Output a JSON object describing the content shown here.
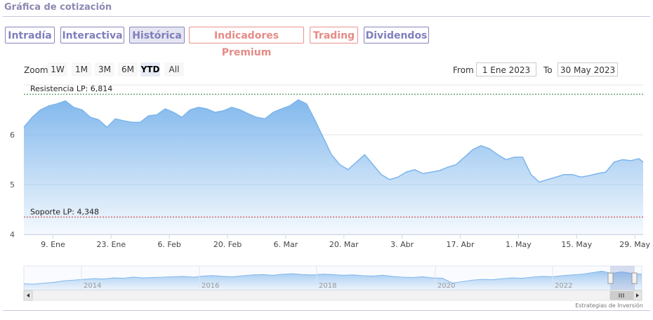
{
  "header": {
    "title": "Gráfica de cotización"
  },
  "tabs": [
    {
      "label": "Intradía",
      "style": "blue",
      "active": false
    },
    {
      "label": "Interactiva",
      "style": "blue",
      "active": false
    },
    {
      "label": "Histórica",
      "style": "blue",
      "active": true
    },
    {
      "label": "Indicadores Premium",
      "style": "red",
      "active": false
    },
    {
      "label": "Trading",
      "style": "red",
      "active": false
    },
    {
      "label": "Dividendos",
      "style": "blue",
      "active": false
    }
  ],
  "zoom": {
    "label": "Zoom",
    "buttons": [
      "1W",
      "1M",
      "3M",
      "6M",
      "YTD",
      "All"
    ],
    "selected": "YTD"
  },
  "range": {
    "from_label": "From",
    "from_value": "1 Ene 2023",
    "to_label": "To",
    "to_value": "30 May 2023"
  },
  "credit": "Estrategias de Inversión",
  "colors": {
    "area_line": "#7cb5ec",
    "resistance": "#2e7d32",
    "support": "#c62828",
    "accent": "#8785be"
  },
  "chart_data": {
    "type": "area",
    "ylim": [
      4,
      7
    ],
    "y_ticks": [
      4,
      5,
      6
    ],
    "x_ticks": [
      "9. Ene",
      "23. Ene",
      "6. Feb",
      "20. Feb",
      "6. Mar",
      "20. Mar",
      "3. Abr",
      "17. Abr",
      "1. May",
      "15. May",
      "29. May"
    ],
    "x_tick_days": [
      9,
      23,
      37,
      51,
      65,
      79,
      93,
      107,
      121,
      135,
      149
    ],
    "x_range": [
      2,
      151
    ],
    "plot_lines": [
      {
        "label": "Resistencia LP: 6,814",
        "value": 6.814,
        "style": "dashed"
      },
      {
        "label": "Soporte LP: 4,348",
        "value": 4.348,
        "style": "dashed"
      }
    ],
    "series": [
      {
        "x": [
          2,
          4,
          6,
          8,
          10,
          12,
          14,
          16,
          18,
          20,
          22,
          24,
          26,
          28,
          30,
          32,
          34,
          36,
          38,
          40,
          42,
          44,
          46,
          48,
          50,
          52,
          54,
          56,
          58,
          60,
          62,
          64,
          66,
          68,
          70,
          72,
          74,
          76,
          78,
          80,
          82,
          84,
          86,
          88,
          90,
          92,
          94,
          96,
          98,
          100,
          102,
          104,
          106,
          108,
          110,
          112,
          114,
          116,
          118,
          120,
          122,
          124,
          126,
          128,
          130,
          132,
          134,
          136,
          138,
          140,
          142,
          144,
          146,
          148,
          150,
          151
        ],
        "values": [
          6.15,
          6.35,
          6.5,
          6.58,
          6.62,
          6.68,
          6.55,
          6.5,
          6.35,
          6.3,
          6.15,
          6.32,
          6.28,
          6.25,
          6.25,
          6.38,
          6.4,
          6.52,
          6.45,
          6.35,
          6.5,
          6.55,
          6.52,
          6.45,
          6.48,
          6.55,
          6.5,
          6.42,
          6.35,
          6.32,
          6.45,
          6.52,
          6.58,
          6.7,
          6.62,
          6.3,
          5.95,
          5.6,
          5.4,
          5.3,
          5.45,
          5.6,
          5.4,
          5.2,
          5.1,
          5.15,
          5.25,
          5.3,
          5.22,
          5.25,
          5.28,
          5.35,
          5.4,
          5.55,
          5.7,
          5.78,
          5.72,
          5.6,
          5.5,
          5.55,
          5.55,
          5.2,
          5.05,
          5.1,
          5.15,
          5.2,
          5.2,
          5.15,
          5.18,
          5.22,
          5.25,
          5.45,
          5.5,
          5.48,
          5.52,
          5.45
        ]
      }
    ]
  },
  "navigator": {
    "x_ticks": [
      "2014",
      "2016",
      "2018",
      "2020",
      "2022"
    ],
    "values": [
      4.8,
      4.75,
      4.9,
      5.0,
      5.2,
      5.3,
      5.4,
      5.5,
      5.45,
      5.6,
      5.55,
      5.7,
      5.6,
      5.65,
      5.7,
      5.75,
      5.8,
      5.7,
      5.85,
      5.9,
      5.8,
      5.75,
      5.9,
      6.0,
      6.05,
      5.95,
      6.1,
      6.15,
      6.05,
      6.0,
      6.1,
      6.05,
      5.95,
      6.0,
      5.9,
      5.85,
      5.95,
      5.8,
      5.7,
      5.65,
      5.75,
      5.6,
      5.55,
      4.9,
      5.1,
      5.3,
      5.4,
      5.35,
      5.5,
      5.6,
      5.55,
      5.7,
      5.8,
      5.75,
      5.9,
      6.0,
      6.1,
      6.3,
      6.5,
      6.2,
      6.4,
      6.2,
      6.1
    ]
  }
}
